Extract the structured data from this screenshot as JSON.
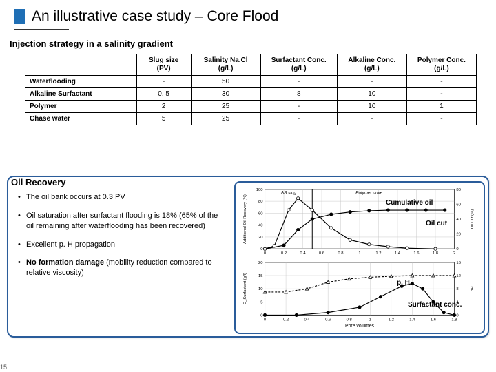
{
  "title": "An illustrative case study – Core Flood",
  "subtitle": "Injection strategy in a salinity gradient",
  "page_num": "15",
  "table": {
    "columns": [
      "Slug size (PV)",
      "Salinity Na.Cl (g/L)",
      "Surfactant  Conc. (g/L)",
      "Alkaline Conc. (g/L)",
      "Polymer Conc. (g/L)"
    ],
    "rows": [
      {
        "label": "Waterflooding",
        "cells": [
          "-",
          "50",
          "-",
          "-",
          "-"
        ]
      },
      {
        "label": "Alkaline Surfactant",
        "cells": [
          "0. 5",
          "30",
          "8",
          "10",
          "-"
        ]
      },
      {
        "label": "Polymer",
        "cells": [
          "2",
          "25",
          "-",
          "10",
          "1"
        ]
      },
      {
        "label": "Chase water",
        "cells": [
          "5",
          "25",
          "-",
          "-",
          "-"
        ]
      }
    ],
    "col_widths": [
      "160px",
      "78px",
      "100px",
      "110px",
      "100px",
      "100px"
    ]
  },
  "recovery": {
    "title": "Oil Recovery",
    "bullets": [
      "The oil bank occurs at 0.3 PV",
      "Oil saturation after surfactant flooding is 18% (65% of the oil remaining after waterflooding has been recovered)",
      "Excellent p. H propagation",
      "<b>No formation damage</b> (mobility reduction compared to relative viscosity)"
    ]
  },
  "chart": {
    "top": {
      "xlim": [
        0,
        2.0
      ],
      "xticks": [
        0,
        0.2,
        0.4,
        0.6,
        0.8,
        1.0,
        1.2,
        1.4,
        1.6,
        1.8,
        2.0
      ],
      "yleft": {
        "label": "Additional Oil Recovery (%)",
        "lim": [
          0,
          100
        ],
        "ticks": [
          0,
          20,
          40,
          60,
          80,
          100
        ]
      },
      "yright": {
        "label": "Oil Cut (%)",
        "lim": [
          0,
          80
        ],
        "ticks": [
          0,
          20,
          40,
          60,
          80
        ]
      },
      "as_slug_x": 0.5,
      "as_label": "AS slug",
      "poly_label": "Polymer drive",
      "cumulative": [
        [
          0,
          0
        ],
        [
          0.2,
          6
        ],
        [
          0.35,
          32
        ],
        [
          0.5,
          50
        ],
        [
          0.7,
          58
        ],
        [
          0.9,
          62
        ],
        [
          1.1,
          64
        ],
        [
          1.3,
          65
        ],
        [
          1.5,
          65
        ],
        [
          1.7,
          65
        ],
        [
          1.9,
          65
        ]
      ],
      "oilcut": [
        [
          0,
          0
        ],
        [
          0.1,
          4
        ],
        [
          0.25,
          52
        ],
        [
          0.35,
          68
        ],
        [
          0.5,
          52
        ],
        [
          0.7,
          28
        ],
        [
          0.9,
          12
        ],
        [
          1.1,
          6
        ],
        [
          1.3,
          3
        ],
        [
          1.5,
          1
        ],
        [
          1.8,
          0
        ]
      ],
      "colors": {
        "cum": "#000000",
        "cut": "#000000",
        "grid": "#bbbbbb",
        "text": "#000"
      }
    },
    "bottom": {
      "xlim": [
        0,
        1.8
      ],
      "xticks": [
        0,
        0.2,
        0.4,
        0.6,
        0.8,
        1.0,
        1.2,
        1.4,
        1.6,
        1.8
      ],
      "yleft": {
        "label": "C_Surfactant (g/l)",
        "lim": [
          0,
          20
        ],
        "ticks": [
          0,
          5,
          10,
          15,
          20
        ]
      },
      "yright": {
        "label": "pH",
        "lim": [
          0,
          16
        ],
        "ticks": [
          0,
          4,
          8,
          12,
          16
        ]
      },
      "xlabel": "Pore volumes",
      "surf": [
        [
          0,
          0
        ],
        [
          0.3,
          0
        ],
        [
          0.6,
          1
        ],
        [
          0.9,
          3
        ],
        [
          1.1,
          7
        ],
        [
          1.3,
          11
        ],
        [
          1.4,
          12
        ],
        [
          1.5,
          10
        ],
        [
          1.6,
          5
        ],
        [
          1.7,
          1
        ],
        [
          1.8,
          0
        ]
      ],
      "ph": [
        [
          0,
          7
        ],
        [
          0.2,
          7
        ],
        [
          0.4,
          8
        ],
        [
          0.6,
          10
        ],
        [
          0.8,
          11
        ],
        [
          1.0,
          11.5
        ],
        [
          1.2,
          11.8
        ],
        [
          1.4,
          12
        ],
        [
          1.6,
          12
        ],
        [
          1.8,
          12
        ]
      ],
      "colors": {
        "surf": "#000000",
        "ph": "#000000"
      }
    },
    "annotations": {
      "cum_oil": "Cumulative oil",
      "oil_cut": "Oil cut",
      "ph": "p. H",
      "surf": "Surfactant conc."
    }
  }
}
